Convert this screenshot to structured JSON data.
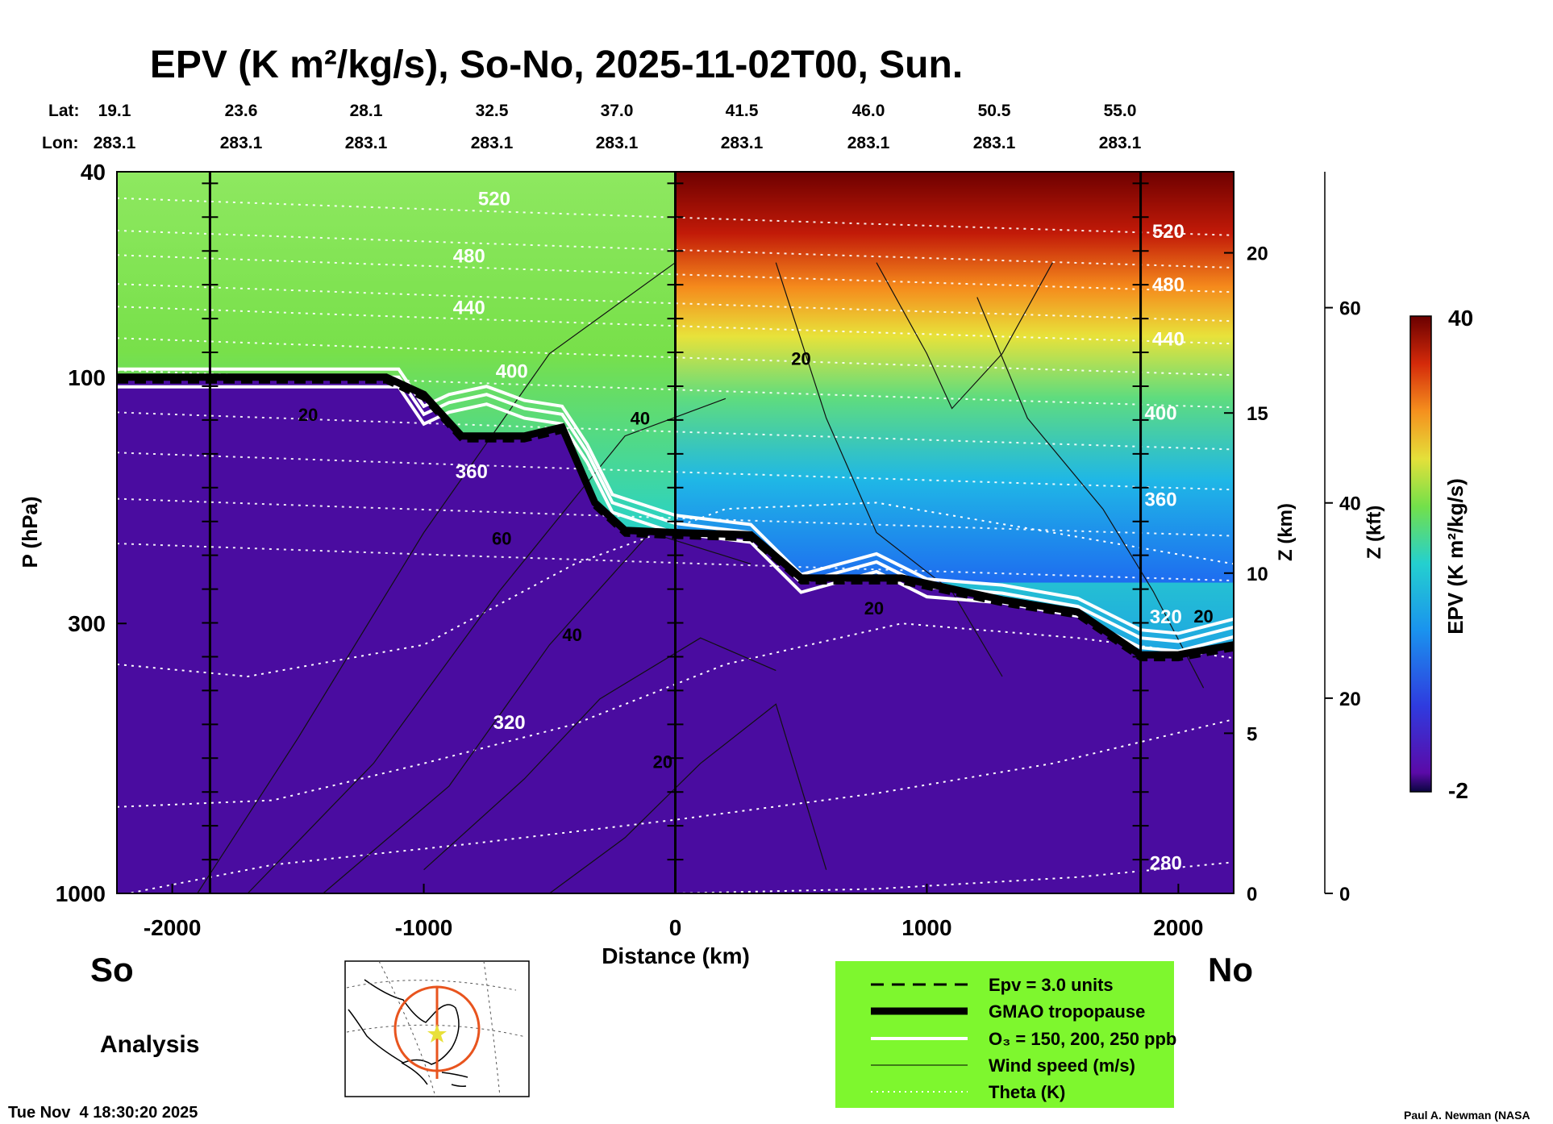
{
  "title": "EPV (K m²/kg/s), So-No, 2025-11-02T00, Sun.",
  "lat_label": "Lat:",
  "lon_label": "Lon:",
  "lat_values": [
    "19.1",
    "23.6",
    "28.1",
    "32.5",
    "37.0",
    "41.5",
    "46.0",
    "50.5",
    "55.0"
  ],
  "lon_values": [
    "283.1",
    "283.1",
    "283.1",
    "283.1",
    "283.1",
    "283.1",
    "283.1",
    "283.1",
    "283.1"
  ],
  "left_end": "So",
  "right_end": "No",
  "mode": "Analysis",
  "timestamp": "Tue Nov  4 18:30:20 2025",
  "credit": "Paul A. Newman (NASA",
  "colorbar": {
    "label": "EPV (K m²/kg/s)",
    "max_label": "40",
    "min_label": "-2"
  },
  "legend": [
    {
      "label": "Epv = 3.0 units",
      "style": "dashed"
    },
    {
      "label": "GMAO tropopause",
      "style": "thick"
    },
    {
      "label": "O₃ = 150, 200, 250 ppb",
      "style": "white"
    },
    {
      "label": "Wind speed (m/s)",
      "style": "thin"
    },
    {
      "label": "Theta (K)",
      "style": "dotted"
    }
  ],
  "colors": {
    "legend_bg": "#7ef72e",
    "troposphere": "#4a0ca0",
    "stratosphere_high": "#7a0000"
  },
  "chart_data": {
    "type": "heatmap",
    "title": "EPV (K m²/kg/s), So-No, 2025-11-02T00, Sun.",
    "xlabel": "Distance (km)",
    "ylabel": "P (hPa)",
    "y2label": "Z (km)",
    "y3label": "Z (kft)",
    "xlim": [
      -2220,
      2220
    ],
    "ylim": [
      1000,
      40
    ],
    "yscale": "log",
    "x_ticks": [
      -2000,
      -1000,
      0,
      1000,
      2000
    ],
    "y_ticks": [
      1000,
      300,
      100,
      40
    ],
    "z_km_ticks": [
      0,
      5,
      10,
      15,
      20
    ],
    "z_kft_ticks": [
      0,
      20,
      40,
      60
    ],
    "colorbar_range": [
      -2,
      40
    ],
    "vertical_markers_km": [
      -1850,
      0,
      1850
    ],
    "theta_labels": [
      {
        "value": "520",
        "x": -720,
        "p": 45
      },
      {
        "value": "480",
        "x": -820,
        "p": 58
      },
      {
        "value": "440",
        "x": -820,
        "p": 73
      },
      {
        "value": "400",
        "x": -650,
        "p": 97
      },
      {
        "value": "360",
        "x": -810,
        "p": 152
      },
      {
        "value": "320",
        "x": -660,
        "p": 465
      },
      {
        "value": "520",
        "x": 1960,
        "p": 52
      },
      {
        "value": "480",
        "x": 1960,
        "p": 66
      },
      {
        "value": "440",
        "x": 1960,
        "p": 84
      },
      {
        "value": "400",
        "x": 1930,
        "p": 117
      },
      {
        "value": "360",
        "x": 1930,
        "p": 172
      },
      {
        "value": "320",
        "x": 1950,
        "p": 290
      },
      {
        "value": "280",
        "x": 1950,
        "p": 870
      }
    ],
    "wind_labels": [
      {
        "value": "20",
        "x": 500,
        "p": 92
      },
      {
        "value": "40",
        "x": -140,
        "p": 120
      },
      {
        "value": "60",
        "x": -690,
        "p": 205
      },
      {
        "value": "20",
        "x": -1460,
        "p": 118
      },
      {
        "value": "40",
        "x": -410,
        "p": 315
      },
      {
        "value": "20",
        "x": -50,
        "p": 555
      },
      {
        "value": "20",
        "x": 790,
        "p": 280
      },
      {
        "value": "20",
        "x": 2100,
        "p": 290
      }
    ],
    "theta_levels": [
      520,
      480,
      440,
      400,
      360,
      320,
      280
    ],
    "tropopause": {
      "x": [
        -2220,
        -1150,
        -1000,
        -850,
        -600,
        -450,
        -320,
        -200,
        0,
        300,
        500,
        900,
        1300,
        1600,
        1850,
        2000,
        2220
      ],
      "p": [
        100,
        100,
        108,
        130,
        130,
        125,
        175,
        198,
        200,
        202,
        245,
        245,
        270,
        285,
        345,
        345,
        330
      ]
    },
    "o3_200ppb": {
      "x": [
        -2220,
        -1600,
        -1100,
        -1000,
        -900,
        -750,
        -600,
        -450,
        -350,
        -250,
        0,
        300,
        500,
        800,
        1000,
        1300,
        1600,
        1850,
        2000,
        2220
      ],
      "p": [
        100,
        100,
        100,
        118,
        112,
        108,
        115,
        118,
        140,
        175,
        192,
        200,
        250,
        228,
        255,
        262,
        278,
        320,
        325,
        305
      ]
    }
  }
}
